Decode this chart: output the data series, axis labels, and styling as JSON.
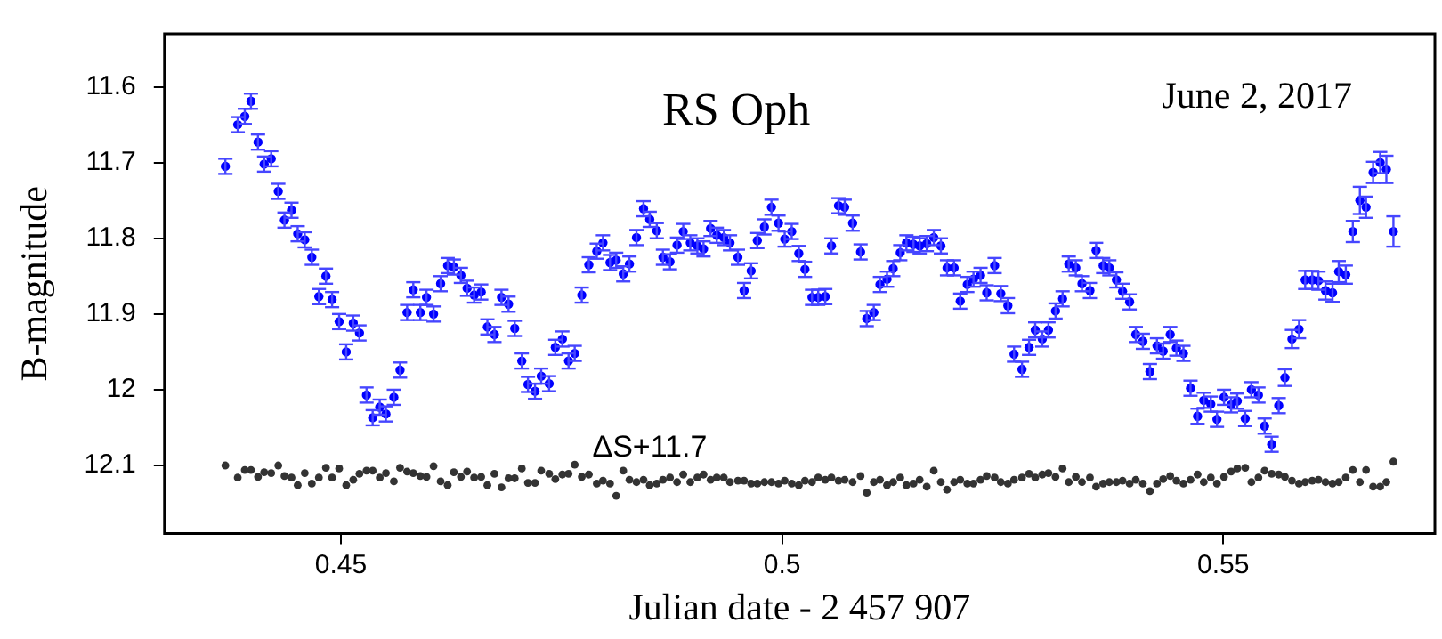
{
  "chart_data": {
    "type": "scatter",
    "title": "RS Oph",
    "subtitle": "June 2, 2017",
    "xlabel": "Julian date - 2 457 907",
    "ylabel": "B-magnitude",
    "xlim": [
      0.43,
      0.574
    ],
    "xticks": [
      0.45,
      0.5,
      0.55
    ],
    "ylim": [
      12.19,
      11.53
    ],
    "yticks": [
      11.6,
      11.7,
      11.8,
      11.9,
      12,
      12.1
    ],
    "grid": false,
    "legend": false,
    "marker": "circle",
    "x": [
      0.4369,
      0.4383,
      0.4391,
      0.4398,
      0.4406,
      0.4413,
      0.4421,
      0.4429,
      0.4436,
      0.4444,
      0.4451,
      0.4459,
      0.4467,
      0.4475,
      0.4483,
      0.449,
      0.4498,
      0.4506,
      0.4514,
      0.4521,
      0.4529,
      0.4536,
      0.4544,
      0.4551,
      0.456,
      0.4567,
      0.4575,
      0.4582,
      0.459,
      0.4597,
      0.4605,
      0.4613,
      0.4621,
      0.4628,
      0.4636,
      0.4643,
      0.4651,
      0.4659,
      0.4666,
      0.4674,
      0.4682,
      0.469,
      0.4697,
      0.4705,
      0.4712,
      0.472,
      0.4727,
      0.4736,
      0.4743,
      0.4751,
      0.4758,
      0.4765,
      0.4773,
      0.4781,
      0.479,
      0.4797,
      0.4805,
      0.4812,
      0.482,
      0.4827,
      0.4835,
      0.4843,
      0.485,
      0.4858,
      0.4865,
      0.4873,
      0.4881,
      0.4888,
      0.4896,
      0.4904,
      0.4911,
      0.4919,
      0.4926,
      0.4934,
      0.4941,
      0.495,
      0.4957,
      0.4965,
      0.4972,
      0.498,
      0.4988,
      0.4996,
      0.5003,
      0.5011,
      0.5019,
      0.5026,
      0.5034,
      0.5041,
      0.5049,
      0.5056,
      0.5064,
      0.5071,
      0.508,
      0.5089,
      0.5096,
      0.5104,
      0.5111,
      0.5119,
      0.5126,
      0.5134,
      0.5141,
      0.5149,
      0.5156,
      0.5164,
      0.5172,
      0.518,
      0.5187,
      0.5195,
      0.5202,
      0.521,
      0.5217,
      0.5225,
      0.5232,
      0.5241,
      0.5248,
      0.5256,
      0.5263,
      0.5272,
      0.528,
      0.5287,
      0.5295,
      0.5302,
      0.531,
      0.5318,
      0.5325,
      0.5333,
      0.534,
      0.5349,
      0.5356,
      0.5364,
      0.5371,
      0.5379,
      0.5386,
      0.5394,
      0.5401,
      0.5409,
      0.5417,
      0.5425,
      0.5432,
      0.544,
      0.5447,
      0.5455,
      0.5463,
      0.5471,
      0.5478,
      0.5486,
      0.5493,
      0.5501,
      0.5509,
      0.5516,
      0.5525,
      0.5532,
      0.554,
      0.5547,
      0.5555,
      0.5563,
      0.557,
      0.5578,
      0.5586,
      0.5593,
      0.5601,
      0.5608,
      0.5616,
      0.5624,
      0.5631,
      0.5639,
      0.5647,
      0.5655,
      0.5662,
      0.567,
      0.5678,
      0.5685,
      0.5693
    ],
    "series": [
      {
        "color": "#0000ff",
        "values": [
          11.705,
          11.65,
          11.639,
          11.619,
          11.673,
          11.702,
          11.695,
          11.738,
          11.776,
          11.763,
          11.794,
          11.802,
          11.825,
          11.877,
          11.85,
          11.881,
          11.91,
          11.95,
          11.912,
          11.925,
          12.007,
          12.037,
          12.023,
          12.032,
          12.01,
          11.974,
          11.898,
          11.868,
          11.898,
          11.878,
          11.9,
          11.86,
          11.836,
          11.838,
          11.849,
          11.866,
          11.875,
          11.871,
          11.917,
          11.927,
          11.878,
          11.887,
          11.919,
          11.962,
          11.993,
          12.002,
          11.982,
          11.992,
          11.944,
          11.933,
          11.962,
          11.952,
          11.875,
          11.835,
          11.817,
          11.806,
          11.832,
          11.829,
          11.847,
          11.834,
          11.799,
          11.761,
          11.775,
          11.79,
          11.825,
          11.831,
          11.809,
          11.791,
          11.806,
          11.81,
          11.814,
          11.787,
          11.796,
          11.799,
          11.806,
          11.825,
          11.869,
          11.843,
          11.803,
          11.785,
          11.759,
          11.78,
          11.801,
          11.791,
          11.82,
          11.841,
          11.878,
          11.878,
          11.877,
          11.81,
          11.757,
          11.759,
          11.78,
          11.818,
          11.906,
          11.898,
          11.861,
          11.854,
          11.84,
          11.819,
          11.806,
          11.808,
          11.81,
          11.807,
          11.799,
          11.81,
          11.839,
          11.839,
          11.883,
          11.861,
          11.854,
          11.849,
          11.872,
          11.836,
          11.873,
          11.889,
          11.953,
          11.973,
          11.944,
          11.921,
          11.933,
          11.921,
          11.896,
          11.88,
          11.834,
          11.839,
          11.86,
          11.869,
          11.816,
          11.836,
          11.839,
          11.855,
          11.87,
          11.884,
          11.927,
          11.936,
          11.976,
          11.942,
          11.949,
          11.927,
          11.945,
          11.952,
          11.998,
          12.035,
          12.014,
          12.019,
          12.039,
          12.01,
          12.02,
          12.015,
          12.038,
          12.0,
          12.007,
          12.048,
          12.072,
          12.021,
          11.984,
          11.933,
          11.92,
          11.855,
          11.855,
          11.856,
          11.869,
          11.872,
          11.844,
          11.848,
          11.791,
          11.75,
          11.759,
          11.713,
          11.7,
          11.709,
          11.791
        ],
        "errors": [
          0.01,
          0.01,
          0.01,
          0.01,
          0.01,
          0.01,
          0.01,
          0.01,
          0.01,
          0.01,
          0.01,
          0.01,
          0.01,
          0.01,
          0.01,
          0.01,
          0.01,
          0.01,
          0.01,
          0.01,
          0.01,
          0.01,
          0.01,
          0.01,
          0.01,
          0.01,
          0.01,
          0.01,
          0.01,
          0.01,
          0.01,
          0.01,
          0.01,
          0.01,
          0.01,
          0.01,
          0.01,
          0.01,
          0.01,
          0.01,
          0.01,
          0.01,
          0.01,
          0.01,
          0.01,
          0.01,
          0.01,
          0.01,
          0.01,
          0.01,
          0.01,
          0.01,
          0.01,
          0.01,
          0.01,
          0.01,
          0.01,
          0.01,
          0.01,
          0.01,
          0.01,
          0.01,
          0.01,
          0.01,
          0.01,
          0.01,
          0.01,
          0.01,
          0.01,
          0.01,
          0.01,
          0.01,
          0.01,
          0.01,
          0.01,
          0.01,
          0.01,
          0.01,
          0.01,
          0.01,
          0.01,
          0.01,
          0.01,
          0.01,
          0.01,
          0.01,
          0.01,
          0.01,
          0.01,
          0.01,
          0.01,
          0.01,
          0.01,
          0.01,
          0.01,
          0.01,
          0.01,
          0.01,
          0.01,
          0.01,
          0.01,
          0.01,
          0.01,
          0.01,
          0.01,
          0.01,
          0.01,
          0.01,
          0.01,
          0.01,
          0.01,
          0.01,
          0.01,
          0.01,
          0.01,
          0.01,
          0.01,
          0.01,
          0.01,
          0.01,
          0.01,
          0.01,
          0.01,
          0.01,
          0.01,
          0.01,
          0.01,
          0.01,
          0.01,
          0.01,
          0.01,
          0.01,
          0.01,
          0.01,
          0.01,
          0.01,
          0.01,
          0.01,
          0.01,
          0.01,
          0.01,
          0.01,
          0.01,
          0.01,
          0.01,
          0.01,
          0.01,
          0.01,
          0.01,
          0.01,
          0.01,
          0.01,
          0.01,
          0.01,
          0.01,
          0.01,
          0.011,
          0.012,
          0.012,
          0.012,
          0.012,
          0.012,
          0.012,
          0.012,
          0.014,
          0.012,
          0.014,
          0.018,
          0.014,
          0.014,
          0.014,
          0.018,
          0.02
        ]
      },
      {
        "name": "ΔS+11.7",
        "color": "#333333",
        "values": [
          12.1,
          12.116,
          12.106,
          12.106,
          12.115,
          12.109,
          12.11,
          12.1,
          12.114,
          12.116,
          12.126,
          12.11,
          12.124,
          12.116,
          12.103,
          12.116,
          12.104,
          12.126,
          12.119,
          12.111,
          12.107,
          12.107,
          12.116,
          12.11,
          12.121,
          12.103,
          12.108,
          12.11,
          12.114,
          12.115,
          12.101,
          12.121,
          12.126,
          12.109,
          12.115,
          12.108,
          12.116,
          12.115,
          12.126,
          12.111,
          12.129,
          12.117,
          12.117,
          12.104,
          12.123,
          12.123,
          12.107,
          12.111,
          12.118,
          12.112,
          12.111,
          12.099,
          12.115,
          12.112,
          12.124,
          12.12,
          12.124,
          12.14,
          12.107,
          12.119,
          12.122,
          12.119,
          12.126,
          12.124,
          12.119,
          12.116,
          12.122,
          12.112,
          12.122,
          12.116,
          12.112,
          12.119,
          12.116,
          12.116,
          12.122,
          12.12,
          12.12,
          12.124,
          12.124,
          12.122,
          12.122,
          12.124,
          12.12,
          12.124,
          12.126,
          12.12,
          12.122,
          12.116,
          12.119,
          12.116,
          12.12,
          12.119,
          12.122,
          12.114,
          12.136,
          12.122,
          12.119,
          12.126,
          12.122,
          12.116,
          12.126,
          12.124,
          12.119,
          12.128,
          12.107,
          12.122,
          12.132,
          12.122,
          12.119,
          12.124,
          12.124,
          12.119,
          12.114,
          12.116,
          12.122,
          12.124,
          12.119,
          12.116,
          12.111,
          12.116,
          12.112,
          12.11,
          12.115,
          12.104,
          12.122,
          12.115,
          12.122,
          12.116,
          12.128,
          12.124,
          12.122,
          12.122,
          12.12,
          12.124,
          12.119,
          12.124,
          12.134,
          12.124,
          12.118,
          12.114,
          12.12,
          12.124,
          12.119,
          12.112,
          12.122,
          12.116,
          12.124,
          12.115,
          12.108,
          12.104,
          12.103,
          12.122,
          12.116,
          12.107,
          12.111,
          12.112,
          12.115,
          12.12,
          12.124,
          12.122,
          12.12,
          12.119,
          12.122,
          12.124,
          12.122,
          12.116,
          12.106,
          12.122,
          12.106,
          12.128,
          12.128,
          12.122,
          12.095
        ]
      }
    ]
  }
}
